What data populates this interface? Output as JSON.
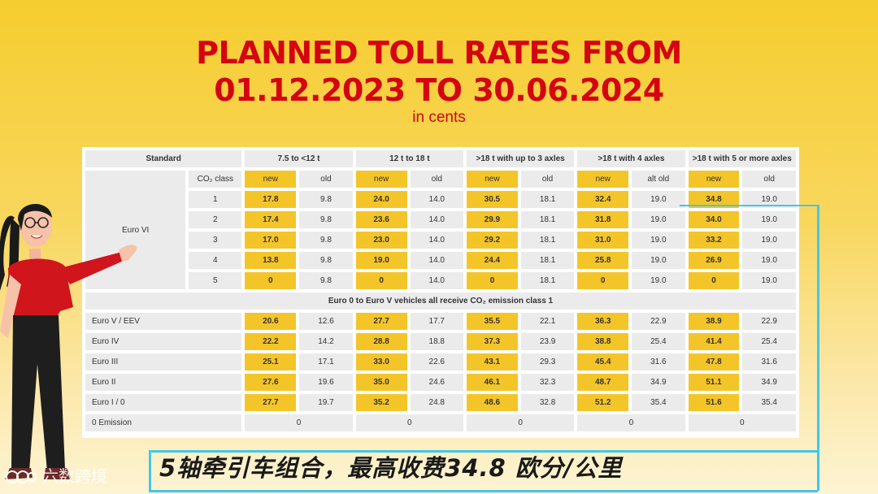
{
  "title": {
    "line1": "PLANNED TOLL RATES FROM",
    "line2": "01.12.2023 TO 30.06.2024",
    "subtitle": "in cents"
  },
  "table": {
    "corner": "Standard",
    "groups": [
      "7.5 to <12 t",
      "12 t to 18 t",
      ">18 t with up to 3 axles",
      ">18 t with 4 axles",
      ">18 t with 5 or more axles"
    ],
    "co2_label": "CO₂ class",
    "subheaders": [
      [
        "new",
        "old"
      ],
      [
        "new",
        "old"
      ],
      [
        "new",
        "old"
      ],
      [
        "new",
        "alt old"
      ],
      [
        "new",
        "old"
      ]
    ],
    "euro_vi_label": "Euro VI",
    "euro_vi_rows": [
      {
        "cls": "1",
        "vals": [
          "17.8",
          "9.8",
          "24.0",
          "14.0",
          "30.5",
          "18.1",
          "32.4",
          "19.0",
          "34.8",
          "19.0"
        ]
      },
      {
        "cls": "2",
        "vals": [
          "17.4",
          "9.8",
          "23.6",
          "14.0",
          "29.9",
          "18.1",
          "31.8",
          "19.0",
          "34.0",
          "19.0"
        ]
      },
      {
        "cls": "3",
        "vals": [
          "17.0",
          "9.8",
          "23.0",
          "14.0",
          "29.2",
          "18.1",
          "31.0",
          "19.0",
          "33.2",
          "19.0"
        ]
      },
      {
        "cls": "4",
        "vals": [
          "13.8",
          "9.8",
          "19.0",
          "14.0",
          "24.4",
          "18.1",
          "25.8",
          "19.0",
          "26.9",
          "19.0"
        ]
      },
      {
        "cls": "5",
        "vals": [
          "0",
          "9.8",
          "0",
          "14.0",
          "0",
          "18.1",
          "0",
          "19.0",
          "0",
          "19.0"
        ]
      }
    ],
    "note": "Euro 0 to Euro V vehicles all receive CO₂ emission class 1",
    "other_rows": [
      {
        "label": "Euro V / EEV",
        "vals": [
          "20.6",
          "12.6",
          "27.7",
          "17.7",
          "35.5",
          "22.1",
          "36.3",
          "22.9",
          "38.9",
          "22.9"
        ]
      },
      {
        "label": "Euro IV",
        "vals": [
          "22.2",
          "14.2",
          "28.8",
          "18.8",
          "37.3",
          "23.9",
          "38.8",
          "25.4",
          "41.4",
          "25.4"
        ]
      },
      {
        "label": "Euro III",
        "vals": [
          "25.1",
          "17.1",
          "33.0",
          "22.6",
          "43.1",
          "29.3",
          "45.4",
          "31.6",
          "47.8",
          "31.6"
        ]
      },
      {
        "label": "Euro II",
        "vals": [
          "27.6",
          "19.6",
          "35.0",
          "24.6",
          "46.1",
          "32.3",
          "48.7",
          "34.9",
          "51.1",
          "34.9"
        ]
      },
      {
        "label": "Euro I / 0",
        "vals": [
          "27.7",
          "19.7",
          "35.2",
          "24.8",
          "48.6",
          "32.8",
          "51.2",
          "35.4",
          "51.6",
          "35.4"
        ]
      }
    ],
    "zero_emission": {
      "label": "0 Emission",
      "vals": [
        "0",
        "0",
        "0",
        "0",
        "0"
      ]
    }
  },
  "caption": "5轴牵引车组合，最高收费34.8  欧分/公里",
  "watermark": "六数跨境",
  "colors": {
    "title_red": "#d40511",
    "new_highlight": "#f4c528",
    "cell_grey": "#ebebeb",
    "callout_cyan": "#43c7e8",
    "background_yellow": "#f6cd2f"
  },
  "icons": [
    "presenter-woman-illustration",
    "watermark-logo-icon"
  ]
}
